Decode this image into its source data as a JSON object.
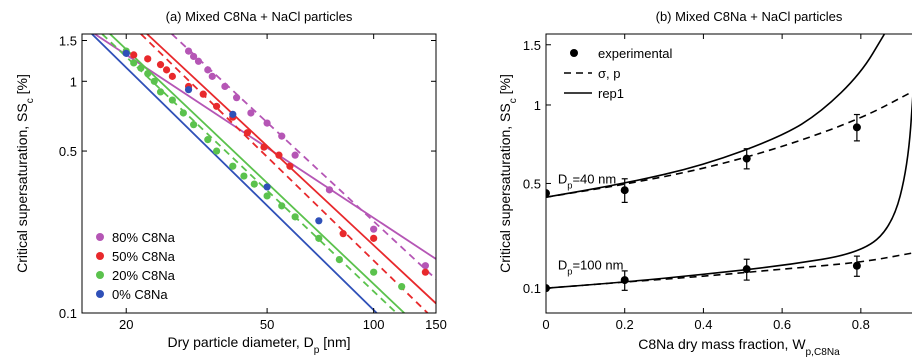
{
  "chart_data": [
    {
      "type": "scatter",
      "title": "(a) Mixed C8Na + NaCl particles",
      "xlabel": "Dry particle diameter, D",
      "xlabel_sub": "p",
      "xlabel_unit": "[nm]",
      "ylabel": "Critical supersaturation, SS",
      "ylabel_sub": "c",
      "ylabel_unit": "[%]",
      "xscale": "log",
      "yscale": "log",
      "xlim": [
        15,
        150
      ],
      "ylim": [
        0.1,
        1.6
      ],
      "xticks": [
        20,
        50,
        100,
        150
      ],
      "xtick_labels": [
        "20",
        "50",
        "100",
        "150"
      ],
      "yticks": [
        0.1,
        0.5,
        1,
        1.5
      ],
      "ytick_labels": [
        "0.1",
        "0.5",
        "1",
        "1.5"
      ],
      "legend_position": "bottom-left",
      "series": [
        {
          "name": "80% C8Na",
          "color": "#b556b5",
          "points": [
            [
              30,
              1.35
            ],
            [
              31,
              1.28
            ],
            [
              32,
              1.22
            ],
            [
              34,
              1.12
            ],
            [
              35,
              1.05
            ],
            [
              38,
              0.95
            ],
            [
              41,
              0.85
            ],
            [
              45,
              0.73
            ],
            [
              50,
              0.66
            ],
            [
              55,
              0.58
            ],
            [
              60,
              0.48
            ],
            [
              75,
              0.34
            ],
            [
              100,
              0.23
            ],
            [
              140,
              0.16
            ]
          ],
          "fit_solid": [
            [
              16.3,
              1.6
            ],
            [
              150,
              0.171
            ]
          ],
          "fit_dashed": [
            [
              26.9,
              1.6
            ],
            [
              150,
              0.14
            ]
          ]
        },
        {
          "name": "50% C8Na",
          "color": "#e8292c",
          "points": [
            [
              21,
              1.3
            ],
            [
              23,
              1.25
            ],
            [
              25,
              1.18
            ],
            [
              26,
              1.12
            ],
            [
              27,
              1.05
            ],
            [
              30,
              0.95
            ],
            [
              33,
              0.88
            ],
            [
              36,
              0.78
            ],
            [
              40,
              0.7
            ],
            [
              44,
              0.6
            ],
            [
              49,
              0.52
            ],
            [
              54,
              0.48
            ],
            [
              58,
              0.43
            ],
            [
              82,
              0.22
            ],
            [
              100,
              0.21
            ],
            [
              140,
              0.15
            ]
          ],
          "fit_solid": [
            [
              22.9,
              1.6
            ],
            [
              150,
              0.11
            ]
          ],
          "fit_dashed": [
            [
              22,
              1.6
            ],
            [
              142,
              0.1
            ]
          ]
        },
        {
          "name": "20% C8Na",
          "color": "#5bc24d",
          "points": [
            [
              20,
              1.35
            ],
            [
              21,
              1.2
            ],
            [
              22,
              1.14
            ],
            [
              23,
              1.08
            ],
            [
              24,
              1.0
            ],
            [
              25,
              0.9
            ],
            [
              27,
              0.83
            ],
            [
              29,
              0.73
            ],
            [
              31,
              0.65
            ],
            [
              34,
              0.56
            ],
            [
              36,
              0.5
            ],
            [
              40,
              0.43
            ],
            [
              43,
              0.39
            ],
            [
              46,
              0.36
            ],
            [
              50,
              0.32
            ],
            [
              55,
              0.29
            ],
            [
              60,
              0.26
            ],
            [
              70,
              0.21
            ],
            [
              80,
              0.17
            ],
            [
              100,
              0.15
            ],
            [
              120,
              0.13
            ]
          ],
          "fit_solid": [
            [
              18,
              1.6
            ],
            [
              122,
              0.1
            ]
          ],
          "fit_dashed": [
            [
              17.1,
              1.6
            ],
            [
              116,
              0.1
            ]
          ]
        },
        {
          "name": "0% C8Na",
          "color": "#2f50b8",
          "points": [
            [
              20,
              1.32
            ],
            [
              30,
              0.92
            ],
            [
              40,
              0.72
            ],
            [
              50,
              0.35
            ],
            [
              70,
              0.25
            ]
          ],
          "fit_solid": [
            [
              16,
              1.6
            ],
            [
              102,
              0.1
            ]
          ]
        }
      ]
    },
    {
      "type": "scatter",
      "title": "(b) Mixed C8Na + NaCl particles",
      "xlabel": "C8Na dry mass fraction, W",
      "xlabel_sub": "p,C8Na",
      "ylabel": "Critical supersaturation, SS",
      "ylabel_sub": "c",
      "ylabel_unit": "[%]",
      "xscale": "linear",
      "yscale": "sqrt",
      "xlim": [
        0,
        0.93
      ],
      "ylim": [
        0.05,
        1.6
      ],
      "xticks": [
        0,
        0.2,
        0.4,
        0.6,
        0.8
      ],
      "xtick_labels": [
        "0",
        "0.2",
        "0.4",
        "0.6",
        "0.8"
      ],
      "yticks": [
        0.1,
        0.5,
        1,
        1.5
      ],
      "ytick_labels": [
        "0.1",
        "0.5",
        "1",
        "1.5"
      ],
      "legend_position": "top-left",
      "legend": [
        "experimental",
        "σ, p",
        "rep1"
      ],
      "annotations": [
        {
          "text": "D",
          "sub": "p",
          "suffix": "=40 nm",
          "x": 0.02,
          "y": 0.52
        },
        {
          "text": "D",
          "sub": "p",
          "suffix": "=100 nm",
          "x": 0.02,
          "y": 0.16
        }
      ],
      "experimental": [
        {
          "x": 0.0,
          "y": 0.45,
          "err": 0.0
        },
        {
          "x": 0.2,
          "y": 0.465,
          "err": 0.06
        },
        {
          "x": 0.51,
          "y": 0.64,
          "err": 0.06
        },
        {
          "x": 0.79,
          "y": 0.84,
          "err": 0.09
        },
        {
          "x": 0.0,
          "y": 0.1,
          "err": 0.0
        },
        {
          "x": 0.2,
          "y": 0.12,
          "err": 0.025
        },
        {
          "x": 0.51,
          "y": 0.15,
          "err": 0.03
        },
        {
          "x": 0.79,
          "y": 0.16,
          "err": 0.03
        }
      ],
      "curve_sigma_p_40": [
        [
          0,
          0.43
        ],
        [
          0.2,
          0.495
        ],
        [
          0.4,
          0.58
        ],
        [
          0.6,
          0.71
        ],
        [
          0.8,
          0.9
        ],
        [
          0.93,
          1.1
        ]
      ],
      "curve_rep1_40": [
        [
          0,
          0.43
        ],
        [
          0.2,
          0.5
        ],
        [
          0.4,
          0.6
        ],
        [
          0.6,
          0.78
        ],
        [
          0.7,
          0.95
        ],
        [
          0.8,
          1.25
        ],
        [
          0.86,
          1.6
        ]
      ],
      "curve_sigma_p_100": [
        [
          0,
          0.1
        ],
        [
          0.2,
          0.115
        ],
        [
          0.4,
          0.13
        ],
        [
          0.6,
          0.15
        ],
        [
          0.8,
          0.17
        ],
        [
          0.93,
          0.2
        ]
      ],
      "curve_rep1_100": [
        [
          0,
          0.1
        ],
        [
          0.2,
          0.115
        ],
        [
          0.4,
          0.135
        ],
        [
          0.6,
          0.16
        ],
        [
          0.8,
          0.2
        ],
        [
          0.88,
          0.3
        ],
        [
          0.92,
          0.6
        ],
        [
          0.935,
          1.2
        ]
      ]
    }
  ]
}
